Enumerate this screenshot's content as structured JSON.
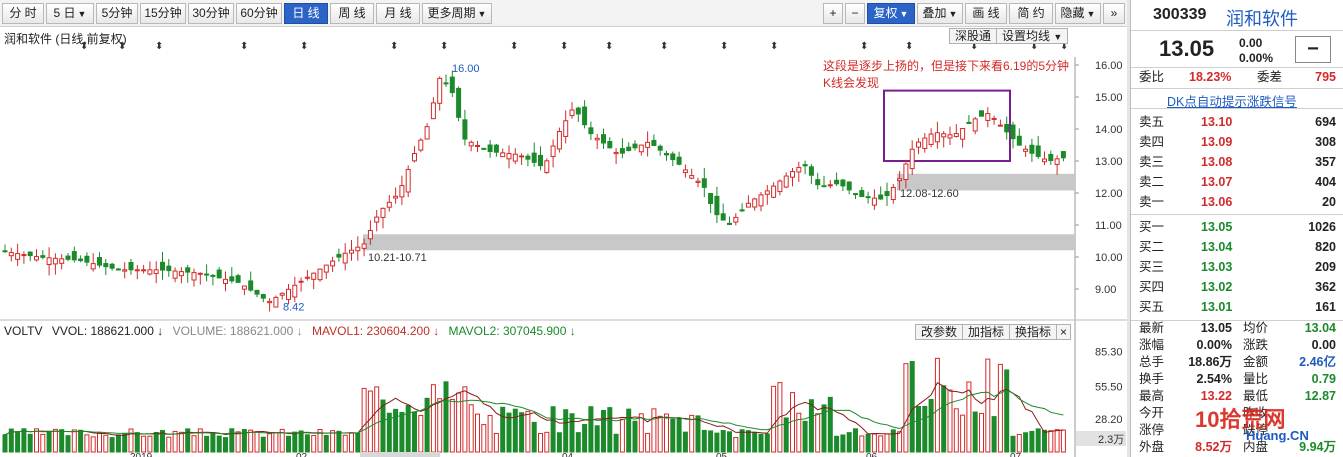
{
  "toolbar": {
    "periods": [
      "分 时",
      "5 日",
      "5分钟",
      "15分钟",
      "30分钟",
      "60分钟",
      "日 线",
      "周 线",
      "月 线",
      "更多周期"
    ],
    "plus": "+",
    "minus": "−",
    "fuquan": "复权",
    "overlay": "叠加",
    "draw": "画 线",
    "jianyue": "简 约",
    "hide": "隐藏"
  },
  "chart": {
    "stock_title": "润和软件 (日线,前复权)",
    "buttons": {
      "shen": "深股通",
      "ma": "设置均线"
    },
    "annotation": "这段是逐步上扬的，但是接下来看6.19的5分钟K线会发现",
    "price_labels": {
      "high": "16.00",
      "low": "8.42"
    },
    "zone_labels": [
      "10.21-10.71",
      "12.08-12.60"
    ],
    "y_axis": [
      "16.00",
      "15.00",
      "14.00",
      "13.00",
      "12.00",
      "11.00",
      "10.00",
      "9.00"
    ]
  },
  "volume": {
    "header": [
      "VOLTV",
      "VVOL: 188621.000 ↓",
      "VOLUME: 188621.000 ↓",
      "MAVOL1: 230604.200 ↓",
      "MAVOL2: 307045.900 ↓"
    ],
    "buttons": [
      "改参数",
      "加指标",
      "换指标",
      "×"
    ],
    "y_axis": [
      "85.30",
      "55.50",
      "28.20"
    ],
    "unit": "2.3万",
    "x_labels": [
      "2019",
      "02",
      "04",
      "05",
      "06",
      "07"
    ]
  },
  "panel": {
    "code": "300339",
    "name": "润和软件",
    "price": "13.05",
    "change": "0.00",
    "change_pct": "0.00%",
    "btn": "−",
    "weibi_label": "委比",
    "weibi": "18.23%",
    "weicha_label": "委差",
    "weicha": "795",
    "dk_link": "DK点自动提示涨跌信号",
    "sells": [
      {
        "label": "卖五",
        "price": "13.10",
        "vol": "694"
      },
      {
        "label": "卖四",
        "price": "13.09",
        "vol": "308"
      },
      {
        "label": "卖三",
        "price": "13.08",
        "vol": "357"
      },
      {
        "label": "卖二",
        "price": "13.07",
        "vol": "404"
      },
      {
        "label": "卖一",
        "price": "13.06",
        "vol": "20"
      }
    ],
    "buys": [
      {
        "label": "买一",
        "price": "13.05",
        "vol": "1026"
      },
      {
        "label": "买二",
        "price": "13.04",
        "vol": "820"
      },
      {
        "label": "买三",
        "price": "13.03",
        "vol": "209"
      },
      {
        "label": "买四",
        "price": "13.02",
        "vol": "362"
      },
      {
        "label": "买五",
        "price": "13.01",
        "vol": "161"
      }
    ],
    "stats": [
      {
        "l1": "最新",
        "v1": "13.05",
        "c1": "",
        "l2": "均价",
        "v2": "13.04",
        "c2": "green"
      },
      {
        "l1": "涨幅",
        "v1": "0.00%",
        "c1": "",
        "l2": "涨跌",
        "v2": "0.00",
        "c2": ""
      },
      {
        "l1": "总手",
        "v1": "18.86万",
        "c1": "",
        "l2": "金额",
        "v2": "2.46亿",
        "c2": "blue"
      },
      {
        "l1": "换手",
        "v1": "2.54%",
        "c1": "",
        "l2": "量比",
        "v2": "0.79",
        "c2": "green"
      },
      {
        "l1": "最高",
        "v1": "13.22",
        "c1": "red",
        "l2": "最低",
        "v2": "12.87",
        "c2": "green"
      },
      {
        "l1": "今开",
        "v1": "",
        "c1": "",
        "l2": "昨收",
        "v2": "",
        "c2": ""
      },
      {
        "l1": "涨停",
        "v1": "",
        "c1": "",
        "l2": "跌停",
        "v2": "",
        "c2": ""
      },
      {
        "l1": "外盘",
        "v1": "8.52万",
        "c1": "red",
        "l2": "内盘",
        "v2": "9.94万",
        "c2": "green"
      }
    ],
    "watermark": "10拾荒网",
    "watermark_sub": "Huang.CN"
  }
}
